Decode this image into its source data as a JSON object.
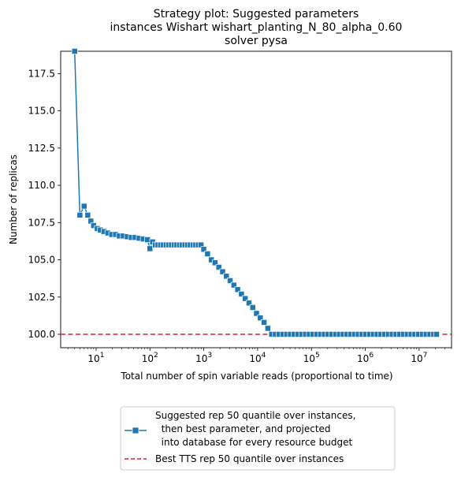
{
  "chart_data": {
    "type": "line",
    "title_lines": [
      "Strategy plot: Suggested parameters",
      "instances Wishart wishart_planting_N_80_alpha_0.60",
      "solver pysa"
    ],
    "xlabel": "Total number of spin variable reads (proportional to time)",
    "ylabel": "Number of replicas",
    "xscale": "log",
    "xlim": [
      2.2,
      40000000
    ],
    "ylim": [
      99.1,
      119.0
    ],
    "yticks": [
      100.0,
      102.5,
      105.0,
      107.5,
      110.0,
      112.5,
      115.0,
      117.5
    ],
    "ytick_labels": [
      "100.0",
      "102.5",
      "105.0",
      "107.5",
      "110.0",
      "112.5",
      "115.0",
      "117.5"
    ],
    "xticks": [
      10,
      100,
      1000,
      10000,
      100000,
      1000000,
      10000000
    ],
    "xtick_base": "10",
    "xtick_exponents": [
      "1",
      "2",
      "3",
      "4",
      "5",
      "6",
      "7"
    ],
    "grid": false,
    "legend_position": "below",
    "series": [
      {
        "name": "Suggested rep 50 quantile over instances,\n  then best parameter, and projected\n  into database for every resource budget",
        "legend_lines": [
          "Suggested rep 50 quantile over instances,",
          "  then best parameter, and projected",
          "  into database for every resource budget"
        ],
        "color": "#1f77b4",
        "marker": "square",
        "x": [
          4.0,
          5.0,
          6.0,
          7.0,
          8.0,
          9.0,
          10.5,
          12.0,
          14.0,
          16.5,
          19.5,
          23.0,
          27.0,
          32.0,
          38.0,
          45.0,
          53.0,
          63.0,
          75.0,
          90.0,
          100.0,
          112.0,
          126.0,
          141.0,
          158.0,
          178.0,
          200.0,
          224.0,
          251.0,
          282.0,
          316.0,
          355.0,
          398.0,
          447.0,
          501.0,
          562.0,
          631.0,
          708.0,
          794.0,
          891.0,
          1000.0,
          1175.0,
          1380.0,
          1622.0,
          1905.0,
          2239.0,
          2630.0,
          3090.0,
          3631.0,
          4266.0,
          5012.0,
          5888.0,
          6918.0,
          8128.0,
          9550.0,
          11220.0,
          13183.0,
          15488.0,
          18197.0,
          21380.0,
          25119.0,
          29512.0,
          34674.0,
          40738.0,
          47863.0,
          56234.0,
          66069.0,
          77625.0,
          91201.0,
          107152.0,
          125893.0,
          147911.0,
          173780.0,
          204174.0,
          239883.0,
          281838.0,
          331131.0,
          389045.0,
          457088.0,
          537032.0,
          630957.0,
          741310.0,
          870964.0,
          1023293.0,
          1202264.0,
          1412538.0,
          1659587.0,
          1949845.0,
          2290868.0,
          2691535.0,
          3162278.0,
          3715352.0,
          4365158.0,
          5128614.0,
          6025596.0,
          7079458.0,
          8317638.0,
          9772372.0,
          11481536.0,
          13489629.0,
          15848932.0,
          18620871.0,
          21000000.0
        ],
        "y": [
          119.0,
          108.0,
          108.6,
          108.0,
          107.6,
          107.3,
          107.1,
          107.0,
          106.9,
          106.8,
          106.7,
          106.7,
          106.6,
          106.6,
          106.55,
          106.5,
          106.5,
          106.45,
          106.4,
          106.35,
          105.75,
          106.2,
          106.0,
          106.0,
          106.0,
          106.0,
          106.0,
          106.0,
          106.0,
          106.0,
          106.0,
          106.0,
          106.0,
          106.0,
          106.0,
          106.0,
          106.0,
          106.0,
          106.0,
          106.0,
          105.7,
          105.4,
          105.0,
          104.8,
          104.5,
          104.2,
          103.9,
          103.6,
          103.3,
          103.0,
          102.7,
          102.4,
          102.1,
          101.8,
          101.4,
          101.1,
          100.8,
          100.4,
          100.0,
          100.0,
          100.0,
          100.0,
          100.0,
          100.0,
          100.0,
          100.0,
          100.0,
          100.0,
          100.0,
          100.0,
          100.0,
          100.0,
          100.0,
          100.0,
          100.0,
          100.0,
          100.0,
          100.0,
          100.0,
          100.0,
          100.0,
          100.0,
          100.0,
          100.0,
          100.0,
          100.0,
          100.0,
          100.0,
          100.0,
          100.0,
          100.0,
          100.0,
          100.0,
          100.0,
          100.0,
          100.0,
          100.0,
          100.0,
          100.0,
          100.0,
          100.0,
          100.0,
          100.0
        ]
      }
    ],
    "reference_lines": [
      {
        "name": "Best TTS rep 50 quantile over instances",
        "legend_lines": [
          "Best TTS rep 50 quantile over instances"
        ],
        "y": 100.0,
        "color": "#d62728",
        "style": "dashed"
      }
    ]
  }
}
